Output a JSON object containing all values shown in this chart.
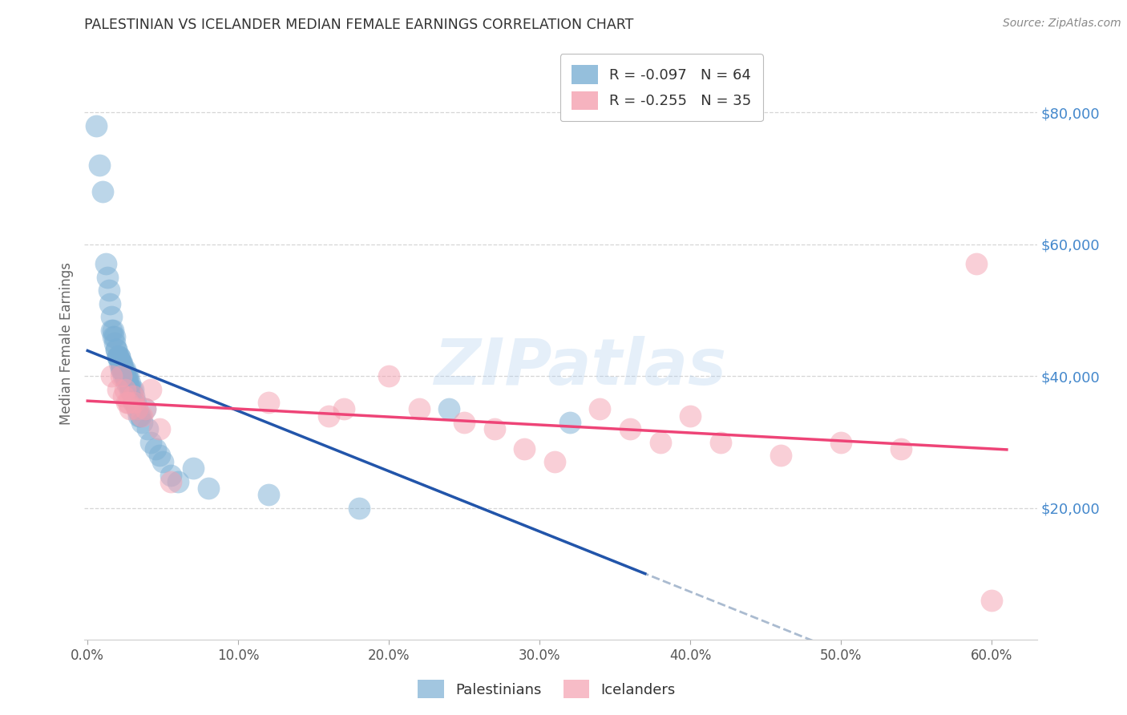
{
  "title": "PALESTINIAN VS ICELANDER MEDIAN FEMALE EARNINGS CORRELATION CHART",
  "source": "Source: ZipAtlas.com",
  "ylabel": "Median Female Earnings",
  "ytick_labels": [
    "$80,000",
    "$60,000",
    "$40,000",
    "$20,000"
  ],
  "ytick_values": [
    80000,
    60000,
    40000,
    20000
  ],
  "ylim": [
    0,
    90000
  ],
  "xlim": [
    -0.002,
    0.63
  ],
  "legend_entry1": "R = -0.097   N = 64",
  "legend_entry2": "R = -0.255   N = 35",
  "legend_label1": "Palestinians",
  "legend_label2": "Icelanders",
  "watermark": "ZIPatlas",
  "blue_color": "#7BAFD4",
  "pink_color": "#F4A0B0",
  "blue_line_color": "#2255AA",
  "pink_line_color": "#EE4477",
  "dashed_line_color": "#AABBD0",
  "grid_color": "#CCCCCC",
  "title_color": "#333333",
  "right_tick_color": "#4488CC",
  "palestinians_x": [
    0.006,
    0.008,
    0.01,
    0.012,
    0.013,
    0.014,
    0.015,
    0.016,
    0.016,
    0.017,
    0.017,
    0.018,
    0.018,
    0.019,
    0.019,
    0.02,
    0.02,
    0.02,
    0.021,
    0.021,
    0.021,
    0.022,
    0.022,
    0.022,
    0.022,
    0.023,
    0.023,
    0.023,
    0.024,
    0.024,
    0.024,
    0.025,
    0.025,
    0.025,
    0.026,
    0.026,
    0.026,
    0.027,
    0.027,
    0.028,
    0.028,
    0.029,
    0.03,
    0.031,
    0.031,
    0.032,
    0.033,
    0.034,
    0.035,
    0.036,
    0.038,
    0.04,
    0.042,
    0.045,
    0.048,
    0.05,
    0.055,
    0.06,
    0.07,
    0.08,
    0.12,
    0.18,
    0.24,
    0.32
  ],
  "palestinians_y": [
    78000,
    72000,
    68000,
    57000,
    55000,
    53000,
    51000,
    49000,
    47000,
    47000,
    46000,
    46000,
    45000,
    44000,
    44000,
    43000,
    43000,
    43000,
    43000,
    43000,
    42000,
    42000,
    42000,
    42000,
    41000,
    42000,
    41000,
    41000,
    41000,
    41000,
    40000,
    41000,
    40000,
    40000,
    40000,
    40000,
    39000,
    40000,
    39000,
    39000,
    38000,
    38000,
    38000,
    37000,
    36000,
    36000,
    35000,
    34000,
    34000,
    33000,
    35000,
    32000,
    30000,
    29000,
    28000,
    27000,
    25000,
    24000,
    26000,
    23000,
    22000,
    20000,
    35000,
    33000
  ],
  "icelanders_x": [
    0.016,
    0.02,
    0.022,
    0.024,
    0.025,
    0.026,
    0.027,
    0.028,
    0.03,
    0.031,
    0.033,
    0.036,
    0.038,
    0.042,
    0.048,
    0.055,
    0.12,
    0.16,
    0.17,
    0.2,
    0.22,
    0.25,
    0.27,
    0.29,
    0.31,
    0.34,
    0.36,
    0.38,
    0.4,
    0.42,
    0.46,
    0.5,
    0.54,
    0.59,
    0.6
  ],
  "icelanders_y": [
    40000,
    38000,
    40000,
    37000,
    38000,
    36000,
    36000,
    35000,
    37000,
    36000,
    35000,
    34000,
    35000,
    38000,
    32000,
    24000,
    36000,
    34000,
    35000,
    40000,
    35000,
    33000,
    32000,
    29000,
    27000,
    35000,
    32000,
    30000,
    34000,
    30000,
    28000,
    30000,
    29000,
    57000,
    6000
  ]
}
